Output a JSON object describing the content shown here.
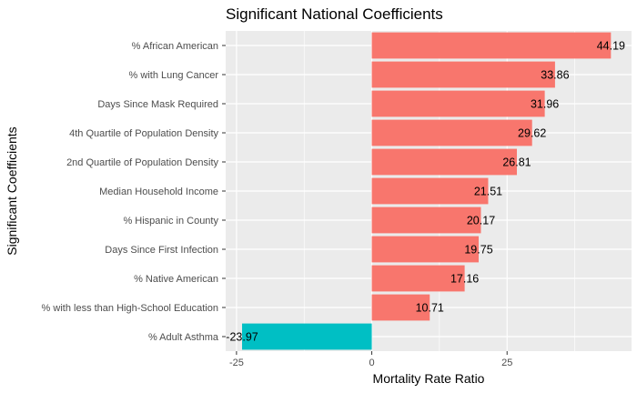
{
  "chart_data": {
    "type": "bar",
    "orientation": "horizontal",
    "title": "Significant National Coefficients",
    "xlabel": "Mortality Rate Ratio",
    "ylabel": "Significant Coefficients",
    "xlim": [
      -27,
      48
    ],
    "x_ticks": [
      -25,
      0,
      25
    ],
    "x_tick_labels": [
      "-25",
      "0",
      "25"
    ],
    "grid": true,
    "legend": "none",
    "categories": [
      "% African American",
      "% with Lung Cancer",
      "Days Since Mask Required",
      "4th Quartile of Population Density",
      "2nd Quartile of Population Density",
      "Median Household Income",
      "% Hispanic in County",
      "Days Since First Infection",
      "% Native American",
      "% with less than High-School Education",
      "% Adult Asthma"
    ],
    "values": [
      44.19,
      33.86,
      31.96,
      29.62,
      26.81,
      21.51,
      20.17,
      19.75,
      17.16,
      10.71,
      -23.97
    ],
    "value_labels": [
      "44.19",
      "33.86",
      "31.96",
      "29.62",
      "26.81",
      "21.51",
      "20.17",
      "19.75",
      "17.16",
      "10.71",
      "-23.97"
    ],
    "colors": {
      "positive": "#F8766D",
      "negative": "#00BFC4",
      "panel": "#EBEBEB",
      "grid": "#FFFFFF",
      "text": "#000000",
      "tick_text": "#4D4D4D"
    }
  }
}
